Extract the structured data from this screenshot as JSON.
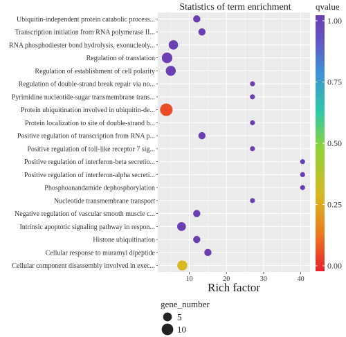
{
  "chart_data": {
    "type": "scatter",
    "title": "Statistics of term enrichment",
    "xlabel": "Rich factor",
    "ylabel": "",
    "xlim": [
      1.5,
      42.5
    ],
    "x_ticks": [
      10,
      20,
      30,
      40
    ],
    "grid": true,
    "categories": [
      "Ubiquitin-independent protein catabolic process...",
      "Transcription initiation from RNA polymerase II...",
      "RNA phosphodiester bond hydrolysis, exonucleoly...",
      "Regulation of translation",
      "Regulation of establishment of cell polarity",
      "Regulation of double-strand break repair via no...",
      "Pyrimidine nucleotide-sugar transmembrane trans...",
      "Protein ubiquitination involved in ubiquitin-de...",
      "Protein localization to site of double-strand b...",
      "Positive regulation of transcription from RNA p...",
      "Positive regulation of toll-like receptor 7 sig...",
      "Positive regulation of interferon-beta secretio...",
      "Positive regulation of interferon-alpha secreti...",
      "Phosphoanandamide dephosphorylation",
      "Nucleotide transmembrane transport",
      "Negative regulation of vascular smooth muscle c...",
      "Intrinsic apoptotic signaling pathway in respon...",
      "Histone ubiquitination",
      "Cellular response to muramyl dipeptide",
      "Cellular component disassembly involved in exec..."
    ],
    "points": [
      {
        "x": 12,
        "gene_number": 3,
        "qvalue": 1.0
      },
      {
        "x": 13.4,
        "gene_number": 3,
        "qvalue": 1.0
      },
      {
        "x": 5.7,
        "gene_number": 6,
        "qvalue": 1.0
      },
      {
        "x": 4,
        "gene_number": 8,
        "qvalue": 1.0
      },
      {
        "x": 5,
        "gene_number": 7,
        "qvalue": 1.0
      },
      {
        "x": 27,
        "gene_number": 1,
        "qvalue": 1.0
      },
      {
        "x": 27,
        "gene_number": 1,
        "qvalue": 1.0
      },
      {
        "x": 3.8,
        "gene_number": 12,
        "qvalue": 0.07
      },
      {
        "x": 27,
        "gene_number": 1,
        "qvalue": 1.0
      },
      {
        "x": 13.4,
        "gene_number": 3,
        "qvalue": 1.0
      },
      {
        "x": 27,
        "gene_number": 1,
        "qvalue": 1.0
      },
      {
        "x": 40.5,
        "gene_number": 1,
        "qvalue": 1.0
      },
      {
        "x": 40.5,
        "gene_number": 1,
        "qvalue": 1.0
      },
      {
        "x": 40.5,
        "gene_number": 1,
        "qvalue": 1.0
      },
      {
        "x": 27,
        "gene_number": 1,
        "qvalue": 1.0
      },
      {
        "x": 12,
        "gene_number": 3,
        "qvalue": 1.0
      },
      {
        "x": 7.9,
        "gene_number": 5,
        "qvalue": 1.0
      },
      {
        "x": 12,
        "gene_number": 3,
        "qvalue": 1.0
      },
      {
        "x": 15,
        "gene_number": 3,
        "qvalue": 1.0
      },
      {
        "x": 8.1,
        "gene_number": 7,
        "qvalue": 0.3
      }
    ],
    "color_legend": {
      "title": "qvalue",
      "ticks": [
        "0.00",
        "0.25",
        "0.50",
        "0.75",
        "1.00"
      ],
      "colors": [
        "#e8202d",
        "#ea7d20",
        "#d6b823",
        "#8fd23a",
        "#2fc9a5",
        "#3f8fd8",
        "#6454c4",
        "#6a3fb2"
      ]
    },
    "size_legend": {
      "title": "gene_number",
      "items": [
        {
          "value": 5,
          "label": "5"
        },
        {
          "value": 10,
          "label": "10"
        }
      ]
    },
    "panel_background": "#ebebeb",
    "grid_color": "#ffffff"
  }
}
